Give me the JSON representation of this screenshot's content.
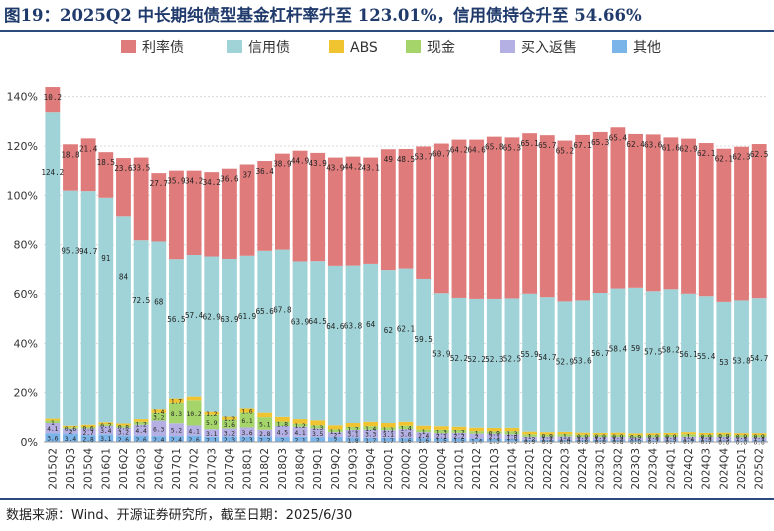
{
  "header": {
    "title": "图19：2025Q2 中长期纯债型基金杠杆率升至 123.01%，信用债持仓升至 54.66%"
  },
  "footer": {
    "source": "数据来源：Wind、开源证券研究所，截至日期：2025/6/30"
  },
  "chart_data": {
    "type": "bar",
    "stacked": true,
    "title": "2025Q2 中长期纯债型基金杠杆率升至 123.01%，信用债持仓升至 54.66%",
    "xlabel": "",
    "ylabel": "",
    "ylim": [
      0,
      150
    ],
    "yticks": [
      "0%",
      "20%",
      "40%",
      "60%",
      "80%",
      "100%",
      "120%",
      "140%"
    ],
    "y_tick_values": [
      0,
      20,
      40,
      60,
      80,
      100,
      120,
      140
    ],
    "grid": true,
    "legend_position": "top",
    "colors": {
      "利率债": "#e07b7b",
      "信用债": "#9fd3d7",
      "ABS": "#f0c430",
      "现金": "#a5d46b",
      "买入返售": "#b5b0e3",
      "其他": "#7ab4e8"
    },
    "categories": [
      "2015Q2",
      "2015Q3",
      "2015Q4",
      "2016Q1",
      "2016Q2",
      "2016Q3",
      "2016Q4",
      "2017Q1",
      "2017Q2",
      "2017Q3",
      "2017Q4",
      "2018Q1",
      "2018Q2",
      "2018Q3",
      "2018Q4",
      "2019Q1",
      "2019Q2",
      "2019Q3",
      "2019Q4",
      "2020Q1",
      "2020Q2",
      "2020Q3",
      "2020Q4",
      "2021Q1",
      "2021Q2",
      "2021Q3",
      "2021Q4",
      "2022Q1",
      "2022Q2",
      "2022Q3",
      "2022Q4",
      "2023Q1",
      "2023Q2",
      "2023Q3",
      "2023Q4",
      "2024Q1",
      "2024Q2",
      "2024Q3",
      "2024Q4",
      "2025Q1",
      "2025Q2"
    ],
    "series": [
      {
        "name": "其他",
        "values": [
          3.6,
          3.4,
          2.8,
          3.1,
          2.6,
          2.6,
          2.4,
          2.4,
          2.6,
          2.1,
          2.3,
          2.3,
          2.2,
          2.0,
          2.1,
          2.0,
          2.0,
          1.8,
          1.7,
          1.7,
          1.6,
          1.6,
          1.5,
          1.5,
          1.4,
          1.3,
          1.3,
          0.9,
          0.9,
          0.8,
          0.8,
          0.8,
          0.8,
          0.8,
          0.7,
          0.7,
          0.7,
          0.7,
          0.6,
          0.6,
          0.6
        ],
        "labels": [
          "3.6",
          "3.4",
          "2.8",
          "3.1",
          "2.6",
          "2.6",
          "2.4",
          "2.4",
          "2.6",
          "2.1",
          "2.3",
          "2.3",
          "2.2",
          "2",
          "2.1",
          "2",
          "2",
          "1.8",
          "1.7",
          "1.7",
          "1.6",
          "1.6",
          "1.5",
          "1.5",
          "1.4",
          "1.3",
          "1.3",
          "0.9",
          "0.9",
          "0.8",
          "0.8",
          "0.8",
          "0.8",
          "0.8",
          "0.7",
          "0.7",
          "0.7",
          "0.7",
          "0.6",
          "0.6",
          "0.6"
        ]
      },
      {
        "name": "买入返售",
        "values": [
          4.1,
          2,
          2.7,
          3.4,
          3.2,
          4.4,
          6.3,
          5.2,
          4.1,
          3.1,
          3.2,
          3.6,
          2.8,
          4.5,
          4.1,
          3.5,
          2.0,
          3.1,
          3.3,
          3.1,
          3.6,
          2.4,
          2.1,
          2.2,
          2.0,
          2.1,
          1.8,
          1.2,
          1.2,
          1.4,
          1.2,
          1.2,
          1.2,
          1.0,
          1.2,
          1.3,
          1.4,
          1.3,
          1.5,
          1.3,
          1.3
        ],
        "labels": [
          "4.1",
          "2",
          "2.7",
          "3.4",
          "3.2",
          "4.4",
          "6.3",
          "5.2",
          "4.1",
          "3.1",
          "3.2",
          "3.6",
          "2.8",
          "4.5",
          "4.1",
          "3.5",
          "2",
          "3.1",
          "3.3",
          "3.1",
          "3.6",
          "2.4",
          "2.1",
          "2.2",
          "2",
          "2.1",
          "1.8",
          "1.2",
          "1.2",
          "1.4",
          "1.2",
          "1.2",
          "1.2",
          "1",
          "1.2",
          "1.3",
          "1.4",
          "1.3",
          "1.5",
          "1.3",
          "1.3"
        ]
      },
      {
        "name": "现金",
        "values": [
          1.0,
          0.6,
          0.6,
          0.7,
          0.8,
          1.2,
          3.2,
          8.3,
          10.2,
          5.9,
          3.6,
          6.1,
          5.1,
          1.8,
          1.2,
          1.3,
          1.1,
          1.2,
          1.4,
          1.1,
          1.4,
          1.0,
          1.3,
          1.2,
          1.0,
          0.9,
          1.3,
          1.0,
          0.9,
          1.0,
          0.9,
          0.9,
          0.9,
          0.9,
          0.9,
          0.9,
          1.0,
          0.9,
          0.9,
          0.9,
          0.9
        ],
        "labels": [
          "1",
          "0.6",
          "0.6",
          "0.7",
          "0.8",
          "1.2",
          "3.2",
          "8.3",
          "10.2",
          "5.9",
          "3.6",
          "6.1",
          "5.1",
          "1.8",
          "1.2",
          "1.3",
          "1.1",
          "1.2",
          "1.4",
          "1.1",
          "1.4",
          "1",
          "1.3",
          "1.2",
          "1",
          "0.9",
          "1.3",
          "1",
          "0.9",
          "1",
          "0.9",
          "0.9",
          "0.9",
          "0.9",
          "0.9",
          "0.9",
          "1",
          "0.9",
          "0.9",
          "0.9",
          "0.9"
        ]
      },
      {
        "name": "ABS",
        "values": [
          0.8,
          0.6,
          0.9,
          0.8,
          0.9,
          1.1,
          1.4,
          1.7,
          1.5,
          1.2,
          1.2,
          1.6,
          1.8,
          1.9,
          1.9,
          2.0,
          1.7,
          1.6,
          1.8,
          1.8,
          1.6,
          1.6,
          1.5,
          1.3,
          1.4,
          1.4,
          1.3,
          1.1,
          1.0,
          0.9,
          0.9,
          0.8,
          0.9,
          0.8,
          0.8,
          0.8,
          0.9,
          0.8,
          0.8,
          0.8,
          0.8
        ],
        "labels": [
          "",
          "",
          "",
          "",
          "",
          "",
          "1.4",
          "1.7",
          "",
          "1.2",
          "1.2",
          "1.6",
          "",
          "",
          "",
          "",
          "",
          "",
          "",
          "",
          "",
          "",
          "",
          "",
          "",
          "",
          "",
          "",
          "",
          "",
          "",
          "",
          "",
          "",
          "",
          "",
          "",
          "",
          "",
          "",
          ""
        ]
      },
      {
        "name": "信用债",
        "values": [
          124.2,
          95.3,
          94.7,
          91,
          84,
          72.5,
          68,
          56.5,
          57.4,
          62.9,
          63.9,
          61.9,
          65.6,
          67.8,
          63.9,
          64.5,
          64.6,
          63.8,
          64,
          62,
          62.1,
          59.5,
          53.9,
          52.2,
          52.2,
          52.3,
          52.5,
          55.9,
          54.7,
          52.9,
          53.6,
          56.7,
          58.4,
          59,
          57.5,
          58.2,
          56.1,
          55.4,
          53,
          53.8,
          54.7
        ],
        "labels": [
          "124.2",
          "95.3",
          "94.7",
          "91",
          "84",
          "72.5",
          "68",
          "56.5",
          "57.4",
          "62.9",
          "63.9",
          "61.9",
          "65.6",
          "67.8",
          "63.9",
          "64.5",
          "64.6",
          "63.8",
          "64",
          "62",
          "62.1",
          "59.5",
          "53.9",
          "52.2",
          "52.2",
          "52.3",
          "52.5",
          "55.9",
          "54.7",
          "52.9",
          "53.6",
          "56.7",
          "58.4",
          "59",
          "57.5",
          "58.2",
          "56.1",
          "55.4",
          "53",
          "53.8",
          "54.7"
        ]
      },
      {
        "name": "利率债",
        "values": [
          10.2,
          18.8,
          21.4,
          18.5,
          23.6,
          33.5,
          27.7,
          35.9,
          34.2,
          34.2,
          36.6,
          37,
          36.4,
          38.9,
          44.9,
          43.9,
          43.9,
          44.2,
          43.1,
          49,
          48.5,
          53.7,
          60.7,
          64.2,
          64.6,
          65.8,
          65.3,
          65.1,
          65.7,
          65.2,
          67.1,
          65.3,
          65.4,
          62.4,
          63.6,
          61.6,
          62.9,
          62.1,
          62.1,
          62.3,
          62.5
        ],
        "labels": [
          "10.2",
          "18.8",
          "21.4",
          "18.5",
          "23.6",
          "33.5",
          "27.7",
          "35.9",
          "34.2",
          "34.2",
          "36.6",
          "37",
          "36.4",
          "38.9",
          "44.9",
          "43.9",
          "43.9",
          "44.2",
          "43.1",
          "49",
          "48.5",
          "53.7",
          "60.7",
          "64.2",
          "64.6",
          "65.8",
          "65.3",
          "65.1",
          "65.7",
          "65.2",
          "67.1",
          "65.3",
          "65.4",
          "62.4",
          "63.6",
          "61.6",
          "62.9",
          "62.1",
          "62.1",
          "62.3",
          "62.5"
        ]
      }
    ]
  }
}
